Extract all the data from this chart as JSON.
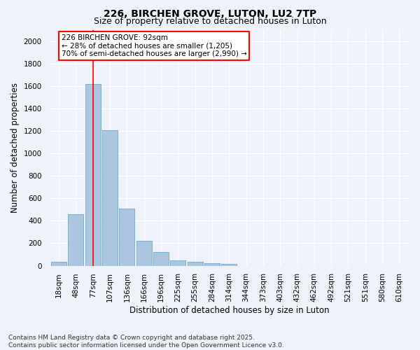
{
  "title": "226, BIRCHEN GROVE, LUTON, LU2 7TP",
  "subtitle": "Size of property relative to detached houses in Luton",
  "xlabel": "Distribution of detached houses by size in Luton",
  "ylabel": "Number of detached properties",
  "bar_color": "#adc6e0",
  "bar_edge_color": "#6aaad4",
  "background_color": "#eef2fa",
  "grid_color": "#ffffff",
  "categories": [
    "18sqm",
    "48sqm",
    "77sqm",
    "107sqm",
    "136sqm",
    "166sqm",
    "196sqm",
    "225sqm",
    "255sqm",
    "284sqm",
    "314sqm",
    "344sqm",
    "373sqm",
    "403sqm",
    "432sqm",
    "462sqm",
    "492sqm",
    "521sqm",
    "551sqm",
    "580sqm",
    "610sqm"
  ],
  "values": [
    35,
    460,
    1620,
    1205,
    510,
    220,
    125,
    50,
    35,
    20,
    15,
    0,
    0,
    0,
    0,
    0,
    0,
    0,
    0,
    0,
    0
  ],
  "ylim": [
    0,
    2100
  ],
  "yticks": [
    0,
    200,
    400,
    600,
    800,
    1000,
    1200,
    1400,
    1600,
    1800,
    2000
  ],
  "red_line_index": 2,
  "annotation_line1": "226 BIRCHEN GROVE: 92sqm",
  "annotation_line2": "← 28% of detached houses are smaller (1,205)",
  "annotation_line3": "70% of semi-detached houses are larger (2,990) →",
  "footer_line1": "Contains HM Land Registry data © Crown copyright and database right 2025.",
  "footer_line2": "Contains public sector information licensed under the Open Government Licence v3.0.",
  "title_fontsize": 10,
  "subtitle_fontsize": 9,
  "axis_label_fontsize": 8.5,
  "tick_fontsize": 7.5,
  "annotation_fontsize": 7.5,
  "footer_fontsize": 6.5
}
